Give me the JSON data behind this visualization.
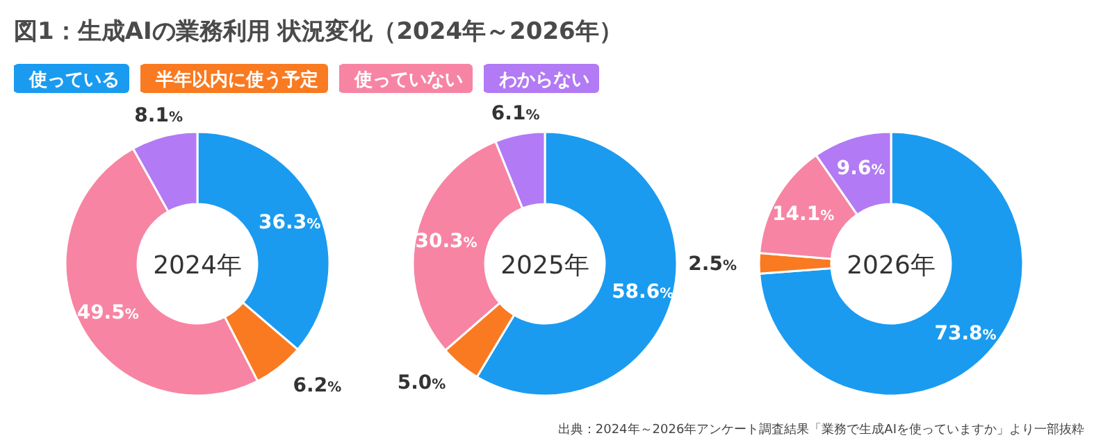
{
  "chart_data": [
    {
      "type": "donut",
      "title": "図1：生成AIの業務利用 状況変化（2024年～2026年）",
      "annotations": [
        "2024年"
      ],
      "legend": "top right",
      "categories": [
        "使っている",
        "半年以内に使う予定",
        "使っていない",
        "わからない"
      ],
      "colors": [
        "#1a9bf0",
        "#f97a21",
        "#f784a3",
        "#b27af5"
      ],
      "values": [
        36.3,
        6.2,
        49.5,
        8.1
      ],
      "value_labels": [
        "36.3%",
        "6.2%",
        "49.5%",
        "8.1%"
      ]
    },
    {
      "type": "donut",
      "annotations": [
        "2025年"
      ],
      "categories": [
        null,
        null,
        null,
        null
      ],
      "colors": [
        "#1a9bf0",
        "#f97a21",
        "#f784a3",
        "#b27af5"
      ],
      "values": [
        58.6,
        5.0,
        30.3,
        6.1
      ],
      "value_labels": [
        "58.6%",
        "5.0%",
        "30.3%",
        "6.1%"
      ]
    },
    {
      "type": "donut",
      "annotations": [
        "2026年",
        "出典：2024年～2026年アンケート調査結果「業務で生成AIを使っていますか」より一部抜粋"
      ],
      "categories": [
        null,
        null,
        null,
        null
      ],
      "colors": [
        "#1a9bf0",
        "#f97a21",
        "#f784a3",
        "#b27af5"
      ],
      "values": [
        73.8,
        2.5,
        14.1,
        9.6
      ],
      "value_labels": [
        "73.8%",
        "2.5%",
        "14.1%",
        "9.6%"
      ]
    }
  ]
}
